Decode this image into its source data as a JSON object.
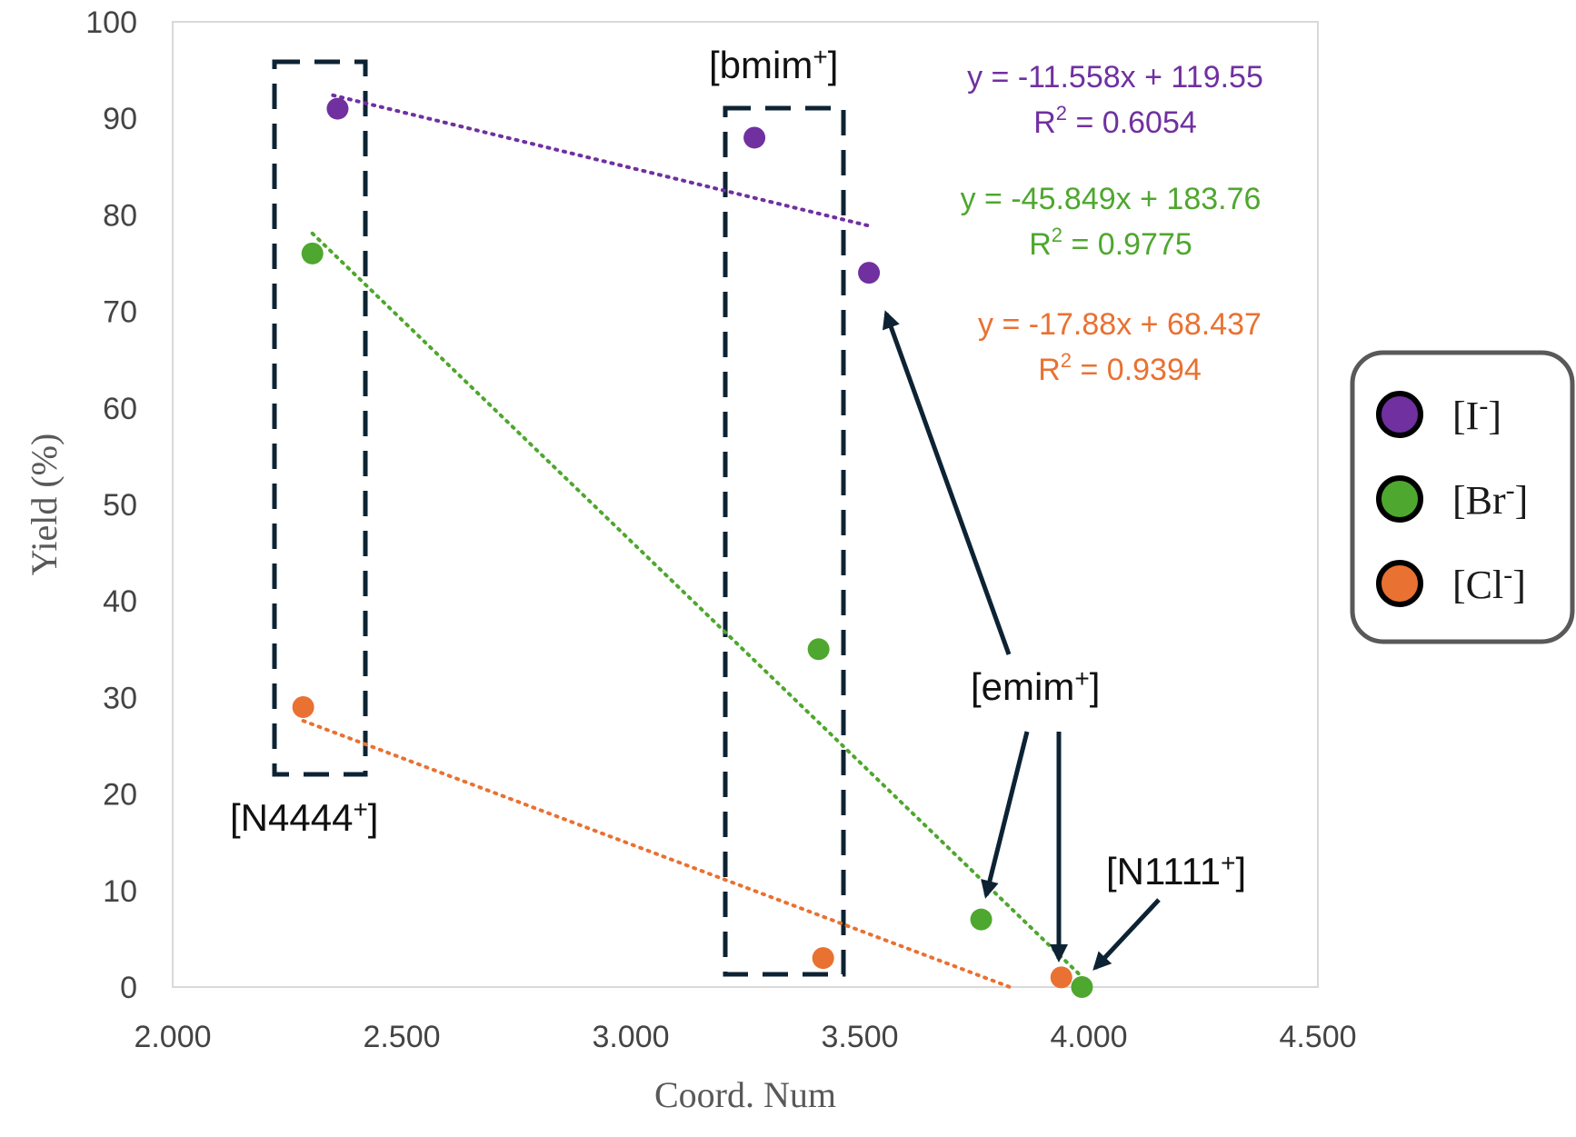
{
  "chart_data": {
    "type": "scatter",
    "title": "",
    "xlabel": "Coord. Num",
    "ylabel": "Yield (%)",
    "xlim": [
      2.0,
      4.5
    ],
    "ylim": [
      0,
      100
    ],
    "xticks": [
      "2.000",
      "2.500",
      "3.000",
      "3.500",
      "4.000",
      "4.500"
    ],
    "yticks": [
      "0",
      "10",
      "20",
      "30",
      "40",
      "50",
      "60",
      "70",
      "80",
      "90",
      "100"
    ],
    "grid": false,
    "legend_position": "right",
    "series": [
      {
        "name": "[I -]",
        "label_main": "[I",
        "label_sup": "-",
        "label_close": "]",
        "color": "#7030A0",
        "x": [
          2.36,
          3.27,
          3.52
        ],
        "y": [
          91,
          88,
          74
        ],
        "trendline": {
          "slope": -11.558,
          "intercept": 119.55,
          "x_range": [
            2.35,
            3.52
          ],
          "r2": 0.6054
        },
        "eq_main": "y = -11.558x + 119.55",
        "r2_prefix": "R",
        "r2_sup": "2",
        "r2_value": " = 0.6054"
      },
      {
        "name": "[Br -]",
        "label_main": "[Br",
        "label_sup": "-",
        "label_close": "]",
        "color": "#4EA72E",
        "x": [
          2.305,
          3.41,
          3.765,
          3.985
        ],
        "y": [
          76,
          35,
          7,
          0
        ],
        "trendline": {
          "slope": -45.849,
          "intercept": 183.76,
          "x_range": [
            2.305,
            3.985
          ],
          "r2": 0.9775
        },
        "eq_main": "y = -45.849x + 183.76",
        "r2_prefix": "R",
        "r2_sup": "2",
        "r2_value": " = 0.9775"
      },
      {
        "name": "[Cl -]",
        "label_main": "[Cl",
        "label_sup": "-",
        "label_close": "]",
        "color": "#E97132",
        "x": [
          2.285,
          3.42,
          3.94
        ],
        "y": [
          29,
          3,
          1
        ],
        "trendline": {
          "slope": -17.88,
          "intercept": 68.437,
          "x_range": [
            2.285,
            3.83
          ],
          "r2": 0.9394
        },
        "eq_main": "y = -17.88x + 68.437",
        "r2_prefix": "R",
        "r2_sup": "2",
        "r2_value": " = 0.9394"
      }
    ],
    "annotations": [
      {
        "id": "n4444",
        "main": "[N4444",
        "sup": "+",
        "close": "]"
      },
      {
        "id": "bmim",
        "main": "[bmim",
        "sup": "+",
        "close": "]"
      },
      {
        "id": "emim",
        "main": "[emim",
        "sup": "+",
        "close": "]"
      },
      {
        "id": "n1111",
        "main": "[N1111",
        "sup": "+",
        "close": "]"
      }
    ]
  }
}
